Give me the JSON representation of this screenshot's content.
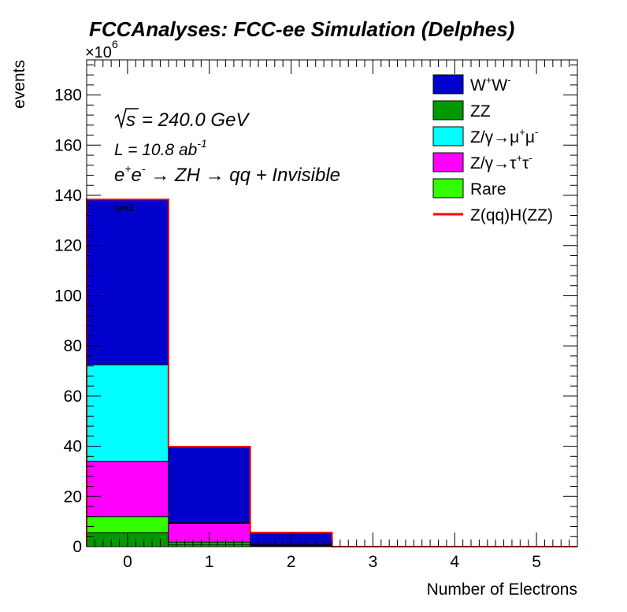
{
  "chart_data": {
    "type": "bar",
    "stacked": true,
    "title": "FCCAnalyses: FCC-ee Simulation (Delphes)",
    "xlabel": "Number of Electrons",
    "ylabel": "events",
    "y_multiplier": "×10",
    "y_multiplier_exp": "6",
    "xlim": [
      -0.5,
      5.5
    ],
    "ylim": [
      0,
      194
    ],
    "x_ticks": [
      0,
      1,
      2,
      3,
      4,
      5
    ],
    "y_ticks": [
      0,
      20,
      40,
      60,
      80,
      100,
      120,
      140,
      160,
      180
    ],
    "categories": [
      "0",
      "1",
      "2",
      "3",
      "4",
      "5"
    ],
    "series": [
      {
        "name": "ZZ",
        "name_parts": [
          [
            "ZZ",
            ""
          ]
        ],
        "color": "#009900",
        "values": [
          5.5,
          1.0,
          0.3,
          0,
          0,
          0
        ]
      },
      {
        "name": "Rare",
        "name_parts": [
          [
            "Rare",
            ""
          ]
        ],
        "color": "#33ff00",
        "values": [
          6.5,
          0.8,
          0.1,
          0,
          0,
          0
        ]
      },
      {
        "name": "Z/γ→τ+τ-",
        "name_parts": [
          [
            "Z/γ→τ",
            ""
          ],
          [
            "+",
            "sup"
          ],
          [
            "τ",
            ""
          ],
          [
            "-",
            "sup"
          ]
        ],
        "color": "#ff00ff",
        "values": [
          22.0,
          7.5,
          0.2,
          0,
          0,
          0
        ]
      },
      {
        "name": "Z/γ→μ+μ-",
        "name_parts": [
          [
            "Z/γ→μ",
            ""
          ],
          [
            "+",
            "sup"
          ],
          [
            "μ",
            ""
          ],
          [
            "-",
            "sup"
          ]
        ],
        "color": "#00ffff",
        "values": [
          38.5,
          0.2,
          0.1,
          0,
          0,
          0
        ]
      },
      {
        "name": "W+W-",
        "name_parts": [
          [
            "W",
            ""
          ],
          [
            "+",
            "sup"
          ],
          [
            "W",
            ""
          ],
          [
            "-",
            "sup"
          ]
        ],
        "color": "#0000cc",
        "values": [
          65.8,
          30.3,
          4.9,
          0,
          0,
          0
        ]
      }
    ],
    "signal": {
      "name": "Z(qq)H(ZZ)",
      "name_parts": [
        [
          "Z(qq)H(ZZ)",
          ""
        ]
      ],
      "color": "#ff0000",
      "values": [
        0.05,
        0.02,
        0.01,
        0,
        0,
        0
      ]
    },
    "legend_order": [
      "W+W-",
      "ZZ",
      "Z/γ→μ+μ-",
      "Z/γ→τ+τ-",
      "Rare",
      "Z(qq)H(ZZ)"
    ],
    "legend_position": "top-right",
    "annotations": {
      "sqrt_s": "= 240.0 GeV",
      "lumi_prefix": "L = 10.8 ab",
      "lumi_exp": "-1",
      "process_parts": [
        [
          "e",
          ""
        ],
        [
          "+",
          "sup"
        ],
        [
          "e",
          ""
        ],
        [
          "-",
          "sup"
        ],
        [
          " → ZH → qq + Invisible",
          ""
        ]
      ],
      "selection": "sel1"
    },
    "grid": false
  }
}
